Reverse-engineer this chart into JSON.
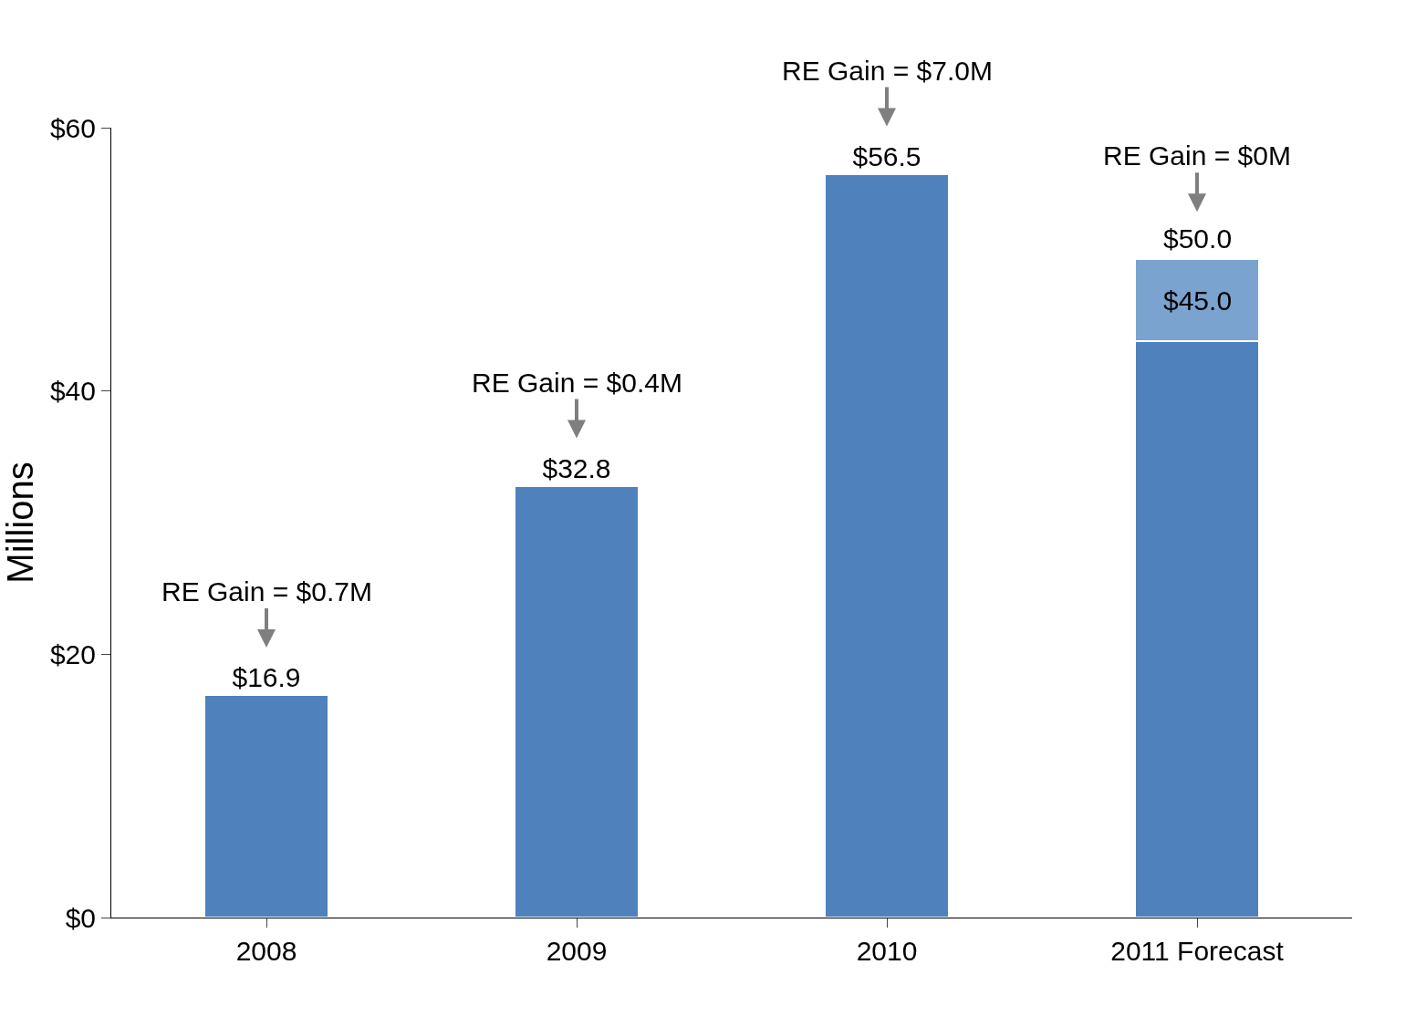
{
  "chart_data": {
    "type": "bar",
    "stacked": true,
    "ylabel": "Millions",
    "categories": [
      "2008",
      "2009",
      "2010",
      "2011 Forecast"
    ],
    "series": [
      {
        "color": "#4f81bd",
        "values": [
          16.9,
          32.8,
          56.5,
          43.8
        ],
        "value_labels": [
          "$16.9",
          "$32.8",
          "$56.5",
          null
        ]
      },
      {
        "color": "#7ba3d0",
        "values": [
          null,
          null,
          null,
          6.2
        ]
      }
    ],
    "totals": [
      null,
      null,
      null,
      "$50.0"
    ],
    "ylim": [
      0,
      60
    ],
    "yticks": [
      {
        "value": 0,
        "label": "$0"
      },
      {
        "value": 20,
        "label": "$20"
      },
      {
        "value": 40,
        "label": "$40"
      },
      {
        "value": 60,
        "label": "$60"
      }
    ],
    "grid": false,
    "legend": false,
    "annotations": [
      {
        "text": "RE Gain = $0.7M",
        "x": "2008",
        "y": 16.9
      },
      {
        "text": "RE Gain = $0.4M",
        "x": "2009",
        "y": 32.8
      },
      {
        "text": "RE Gain = $7.0M",
        "x": "2010",
        "y": 56.5
      },
      {
        "text": "RE Gain = $0M",
        "x": "2011 Forecast",
        "y": 50.0
      },
      "$45.0"
    ]
  }
}
